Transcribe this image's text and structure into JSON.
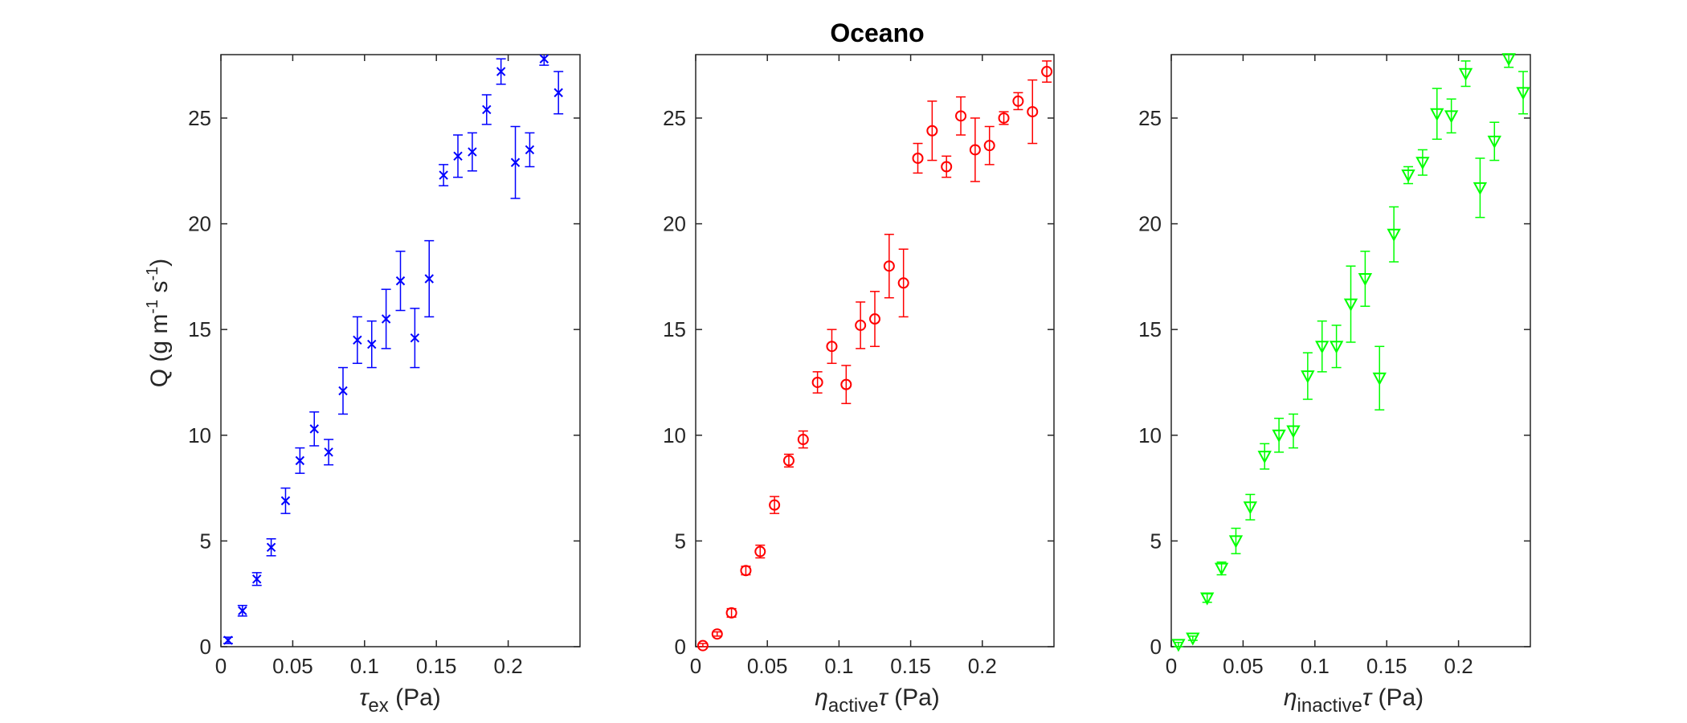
{
  "figure": {
    "title": "Oceano",
    "shared_ylabel": "Q (g m-1 s-1)"
  },
  "chart_data": [
    {
      "type": "scatter",
      "marker": "x",
      "color": "#0000ff",
      "xlim": [
        0,
        0.25
      ],
      "ylim": [
        0,
        28
      ],
      "xticks": [
        "0",
        "0.05",
        "0.1",
        "0.15",
        "0.2"
      ],
      "xtick_values": [
        0,
        0.05,
        0.1,
        0.15,
        0.2
      ],
      "yticks": [
        "0",
        "5",
        "10",
        "15",
        "20",
        "25"
      ],
      "ytick_values": [
        0,
        5,
        10,
        15,
        20,
        25
      ],
      "xlabel": "τex (Pa)",
      "ylabel": "Q (g m-1 s-1)",
      "grid": false,
      "points": [
        {
          "x": 0.005,
          "y": 0.3,
          "err": 0.15
        },
        {
          "x": 0.015,
          "y": 1.7,
          "err": 0.25
        },
        {
          "x": 0.025,
          "y": 3.2,
          "err": 0.3
        },
        {
          "x": 0.035,
          "y": 4.7,
          "err": 0.4
        },
        {
          "x": 0.045,
          "y": 6.9,
          "err": 0.6
        },
        {
          "x": 0.055,
          "y": 8.8,
          "err": 0.6
        },
        {
          "x": 0.065,
          "y": 10.3,
          "err": 0.8
        },
        {
          "x": 0.075,
          "y": 9.2,
          "err": 0.6
        },
        {
          "x": 0.085,
          "y": 12.1,
          "err": 1.1
        },
        {
          "x": 0.095,
          "y": 14.5,
          "err": 1.1
        },
        {
          "x": 0.105,
          "y": 14.3,
          "err": 1.1
        },
        {
          "x": 0.115,
          "y": 15.5,
          "err": 1.4
        },
        {
          "x": 0.125,
          "y": 17.3,
          "err": 1.4
        },
        {
          "x": 0.135,
          "y": 14.6,
          "err": 1.4
        },
        {
          "x": 0.145,
          "y": 17.4,
          "err": 1.8
        },
        {
          "x": 0.155,
          "y": 22.3,
          "err": 0.5
        },
        {
          "x": 0.165,
          "y": 23.2,
          "err": 1.0
        },
        {
          "x": 0.175,
          "y": 23.4,
          "err": 0.9
        },
        {
          "x": 0.185,
          "y": 25.4,
          "err": 0.7
        },
        {
          "x": 0.195,
          "y": 27.2,
          "err": 0.6
        },
        {
          "x": 0.205,
          "y": 22.9,
          "err": 1.7
        },
        {
          "x": 0.215,
          "y": 23.5,
          "err": 0.8
        },
        {
          "x": 0.225,
          "y": 27.8,
          "err": 0.3
        },
        {
          "x": 0.235,
          "y": 26.2,
          "err": 1.0
        }
      ]
    },
    {
      "type": "scatter",
      "marker": "circle",
      "color": "#ff0000",
      "xlim": [
        0,
        0.25
      ],
      "ylim": [
        0,
        28
      ],
      "xticks": [
        "0",
        "0.05",
        "0.1",
        "0.15",
        "0.2"
      ],
      "xtick_values": [
        0,
        0.05,
        0.1,
        0.15,
        0.2
      ],
      "yticks": [
        "0",
        "5",
        "10",
        "15",
        "20",
        "25"
      ],
      "ytick_values": [
        0,
        5,
        10,
        15,
        20,
        25
      ],
      "xlabel": "ηactiveτ (Pa)",
      "grid": false,
      "points": [
        {
          "x": 0.005,
          "y": 0.05,
          "err": 0.1
        },
        {
          "x": 0.015,
          "y": 0.6,
          "err": 0.1
        },
        {
          "x": 0.025,
          "y": 1.6,
          "err": 0.2
        },
        {
          "x": 0.035,
          "y": 3.6,
          "err": 0.2
        },
        {
          "x": 0.045,
          "y": 4.5,
          "err": 0.3
        },
        {
          "x": 0.055,
          "y": 6.7,
          "err": 0.4
        },
        {
          "x": 0.065,
          "y": 8.8,
          "err": 0.3
        },
        {
          "x": 0.075,
          "y": 9.8,
          "err": 0.4
        },
        {
          "x": 0.085,
          "y": 12.5,
          "err": 0.5
        },
        {
          "x": 0.095,
          "y": 14.2,
          "err": 0.8
        },
        {
          "x": 0.105,
          "y": 12.4,
          "err": 0.9
        },
        {
          "x": 0.115,
          "y": 15.2,
          "err": 1.1
        },
        {
          "x": 0.125,
          "y": 15.5,
          "err": 1.3
        },
        {
          "x": 0.135,
          "y": 18.0,
          "err": 1.5
        },
        {
          "x": 0.145,
          "y": 17.2,
          "err": 1.6
        },
        {
          "x": 0.155,
          "y": 23.1,
          "err": 0.7
        },
        {
          "x": 0.165,
          "y": 24.4,
          "err": 1.4
        },
        {
          "x": 0.175,
          "y": 22.7,
          "err": 0.5
        },
        {
          "x": 0.185,
          "y": 25.1,
          "err": 0.9
        },
        {
          "x": 0.195,
          "y": 23.5,
          "err": 1.5
        },
        {
          "x": 0.205,
          "y": 23.7,
          "err": 0.9
        },
        {
          "x": 0.215,
          "y": 25.0,
          "err": 0.3
        },
        {
          "x": 0.225,
          "y": 25.8,
          "err": 0.4
        },
        {
          "x": 0.235,
          "y": 25.3,
          "err": 1.5
        },
        {
          "x": 0.245,
          "y": 27.2,
          "err": 0.5
        }
      ]
    },
    {
      "type": "scatter",
      "marker": "triangle-down",
      "color": "#00ff00",
      "xlim": [
        0,
        0.25
      ],
      "ylim": [
        0,
        28
      ],
      "xticks": [
        "0",
        "0.05",
        "0.1",
        "0.15",
        "0.2"
      ],
      "xtick_values": [
        0,
        0.05,
        0.1,
        0.15,
        0.2
      ],
      "yticks": [
        "0",
        "5",
        "10",
        "15",
        "20",
        "25"
      ],
      "ytick_values": [
        0,
        5,
        10,
        15,
        20,
        25
      ],
      "xlabel": "ηinactiveτ (Pa)",
      "grid": false,
      "points": [
        {
          "x": 0.005,
          "y": 0.1,
          "err": 0.1
        },
        {
          "x": 0.015,
          "y": 0.4,
          "err": 0.1
        },
        {
          "x": 0.025,
          "y": 2.3,
          "err": 0.2
        },
        {
          "x": 0.035,
          "y": 3.7,
          "err": 0.3
        },
        {
          "x": 0.045,
          "y": 5.0,
          "err": 0.6
        },
        {
          "x": 0.055,
          "y": 6.6,
          "err": 0.6
        },
        {
          "x": 0.065,
          "y": 9.0,
          "err": 0.6
        },
        {
          "x": 0.075,
          "y": 10.0,
          "err": 0.8
        },
        {
          "x": 0.085,
          "y": 10.2,
          "err": 0.8
        },
        {
          "x": 0.095,
          "y": 12.8,
          "err": 1.1
        },
        {
          "x": 0.105,
          "y": 14.2,
          "err": 1.2
        },
        {
          "x": 0.115,
          "y": 14.2,
          "err": 1.0
        },
        {
          "x": 0.125,
          "y": 16.2,
          "err": 1.8
        },
        {
          "x": 0.135,
          "y": 17.4,
          "err": 1.3
        },
        {
          "x": 0.145,
          "y": 12.7,
          "err": 1.5
        },
        {
          "x": 0.155,
          "y": 19.5,
          "err": 1.3
        },
        {
          "x": 0.165,
          "y": 22.3,
          "err": 0.4
        },
        {
          "x": 0.175,
          "y": 22.9,
          "err": 0.6
        },
        {
          "x": 0.185,
          "y": 25.2,
          "err": 1.2
        },
        {
          "x": 0.195,
          "y": 25.1,
          "err": 0.8
        },
        {
          "x": 0.205,
          "y": 27.1,
          "err": 0.6
        },
        {
          "x": 0.215,
          "y": 21.7,
          "err": 1.4
        },
        {
          "x": 0.225,
          "y": 23.9,
          "err": 0.9
        },
        {
          "x": 0.235,
          "y": 27.8,
          "err": 0.4
        },
        {
          "x": 0.245,
          "y": 26.2,
          "err": 1.0
        }
      ]
    }
  ]
}
